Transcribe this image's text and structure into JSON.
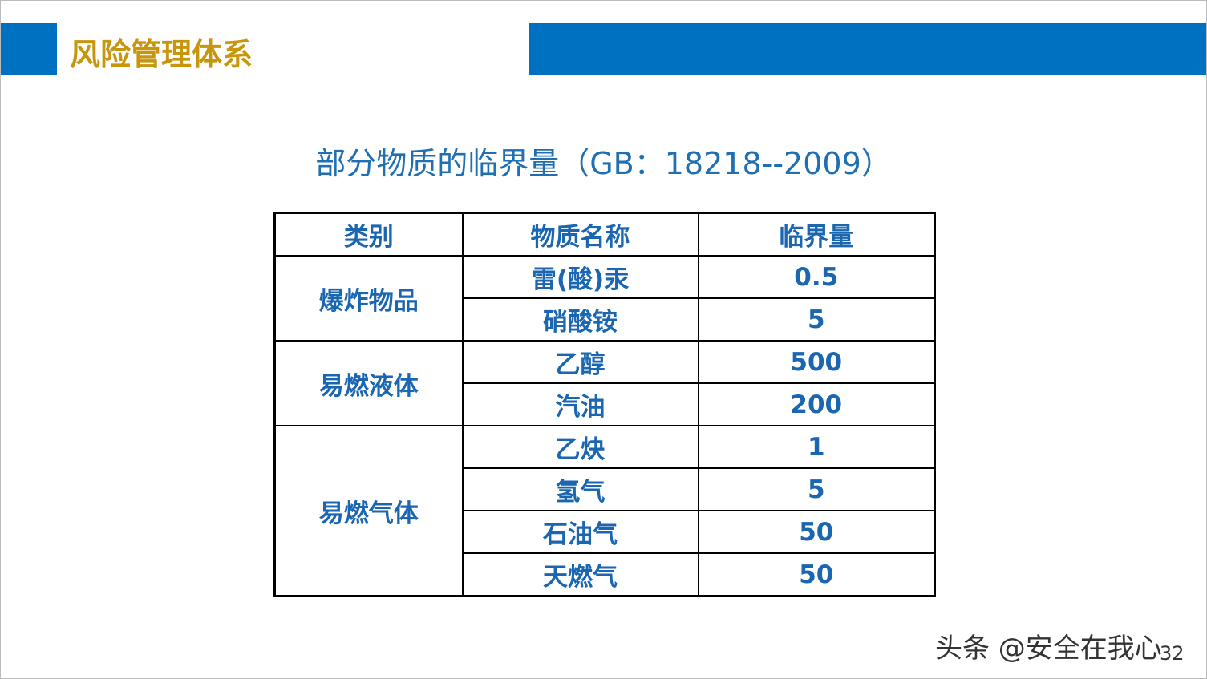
{
  "header": {
    "title": "风险管理体系"
  },
  "subtitle": "部分物质的临界量（GB：18218--2009）",
  "table": {
    "columns": [
      "类别",
      "物质名称",
      "临界量"
    ],
    "groups": [
      {
        "category": "爆炸物品",
        "items": [
          {
            "name": "雷(酸)汞",
            "amount": 0.5
          },
          {
            "name": "硝酸铵",
            "amount": 5
          }
        ]
      },
      {
        "category": "易燃液体",
        "items": [
          {
            "name": "乙醇",
            "amount": 500
          },
          {
            "name": "汽油",
            "amount": 200
          }
        ]
      },
      {
        "category": "易燃气体",
        "items": [
          {
            "name": "乙炔",
            "amount": 1
          },
          {
            "name": "氢气",
            "amount": 5
          },
          {
            "name": "石油气",
            "amount": 50
          },
          {
            "name": "天燃气",
            "amount": 50
          }
        ]
      }
    ]
  },
  "watermark": "头条 @安全在我心",
  "page_number": "32"
}
